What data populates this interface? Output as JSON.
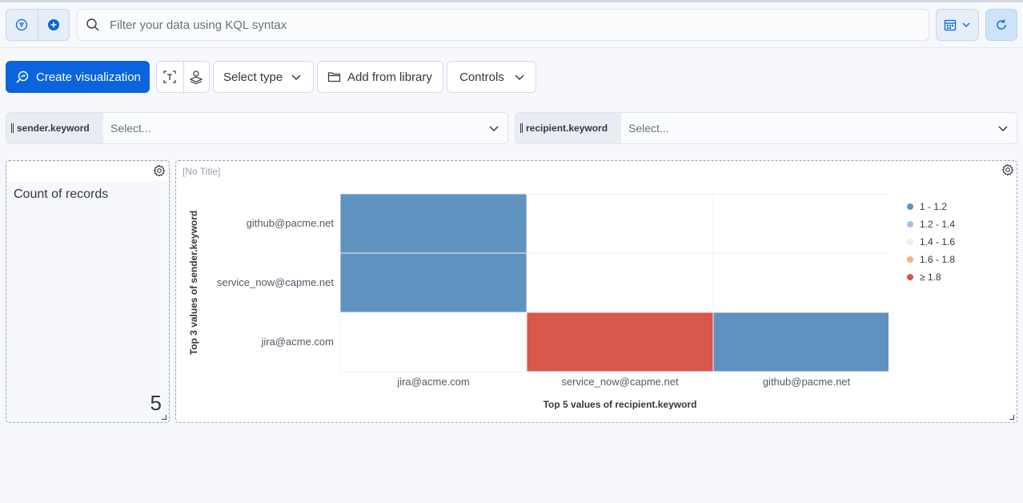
{
  "query_bar": {
    "search_placeholder": "Filter your data using KQL syntax",
    "icons": [
      "filter-icon",
      "plus-circle-icon",
      "search-icon",
      "calendar-icon",
      "chevron-down-icon",
      "refresh-icon"
    ]
  },
  "toolbar": {
    "create_label": "Create visualization",
    "select_type_label": "Select type",
    "add_library_label": "Add from library",
    "controls_label": "Controls"
  },
  "controls": [
    {
      "label": "sender.keyword",
      "placeholder": "Select..."
    },
    {
      "label": "recipient.keyword",
      "placeholder": "Select..."
    }
  ],
  "metric_panel": {
    "label": "Count of records",
    "value": "5"
  },
  "heatmap_panel": {
    "title": "[No Title]"
  },
  "colors": {
    "primary": "#0b64dd",
    "blue_cell": "#6092c0",
    "red_cell": "#d9574b",
    "empty_cell": "#ffffff"
  },
  "chart_data": {
    "type": "heatmap",
    "title": "",
    "xlabel": "Top 5 values of recipient.keyword",
    "ylabel": "Top 3 values of sender.keyword",
    "x": [
      "jira@acme.com",
      "service_now@capme.net",
      "github@pacme.net"
    ],
    "y": [
      "github@pacme.net",
      "service_now@capme.net",
      "jira@acme.com"
    ],
    "values": [
      [
        1,
        null,
        null
      ],
      [
        1,
        null,
        null
      ],
      [
        null,
        2,
        1
      ]
    ],
    "legend": [
      {
        "label": "1 - 1.2",
        "color": "#6092c0"
      },
      {
        "label": "1.2 - 1.4",
        "color": "#a8bfda"
      },
      {
        "label": "1.4 - 1.6",
        "color": "#ebeff5"
      },
      {
        "label": "1.6 - 1.8",
        "color": "#ecb385"
      },
      {
        "label": "≥ 1.8",
        "color": "#d9574b"
      }
    ],
    "legend_position": "right"
  }
}
